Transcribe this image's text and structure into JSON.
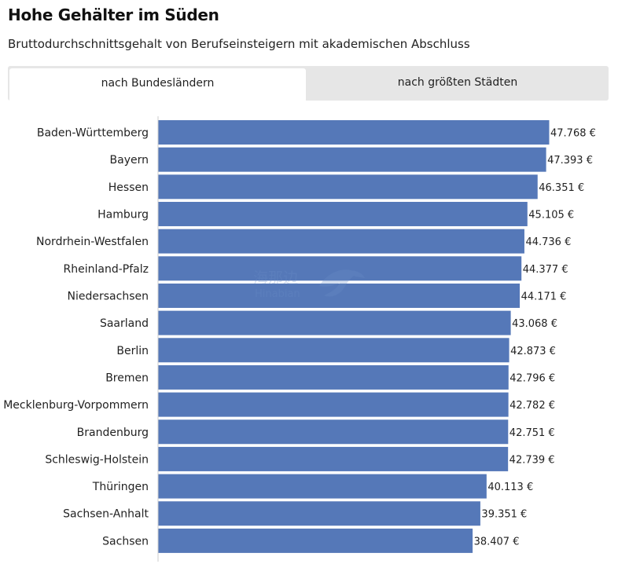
{
  "header": {
    "title": "Hohe Gehälter im Süden",
    "subtitle": "Bruttodurchschnittsgehalt von Berufseinsteigern mit akademischen Abschluss"
  },
  "tabs": [
    {
      "label": "nach Bundesländern",
      "active": true
    },
    {
      "label": "nach größten Städten",
      "active": false
    }
  ],
  "watermark": {
    "cn": "海那边",
    "en": "Hinabian"
  },
  "colors": {
    "bar": "#5578b8",
    "axis": "#cccccc",
    "tab_bg": "#e6e6e6"
  },
  "chart_data": {
    "type": "bar",
    "orientation": "horizontal",
    "unit": "€",
    "xlim": [
      0,
      47768
    ],
    "categories": [
      "Baden-Württemberg",
      "Bayern",
      "Hessen",
      "Hamburg",
      "Nordrhein-Westfalen",
      "Rheinland-Pfalz",
      "Niedersachsen",
      "Saarland",
      "Berlin",
      "Bremen",
      "Mecklenburg-Vorpommern",
      "Brandenburg",
      "Schleswig-Holstein",
      "Thüringen",
      "Sachsen-Anhalt",
      "Sachsen"
    ],
    "values": [
      47768,
      47393,
      46351,
      45105,
      44736,
      44377,
      44171,
      43068,
      42873,
      42796,
      42782,
      42751,
      42739,
      40113,
      39351,
      38407
    ],
    "value_labels": [
      "47.768 €",
      "47.393 €",
      "46.351 €",
      "45.105 €",
      "44.736 €",
      "44.377 €",
      "44.171 €",
      "43.068 €",
      "42.873 €",
      "42.796 €",
      "42.782 €",
      "42.751 €",
      "42.739 €",
      "40.113 €",
      "39.351 €",
      "38.407 €"
    ]
  }
}
